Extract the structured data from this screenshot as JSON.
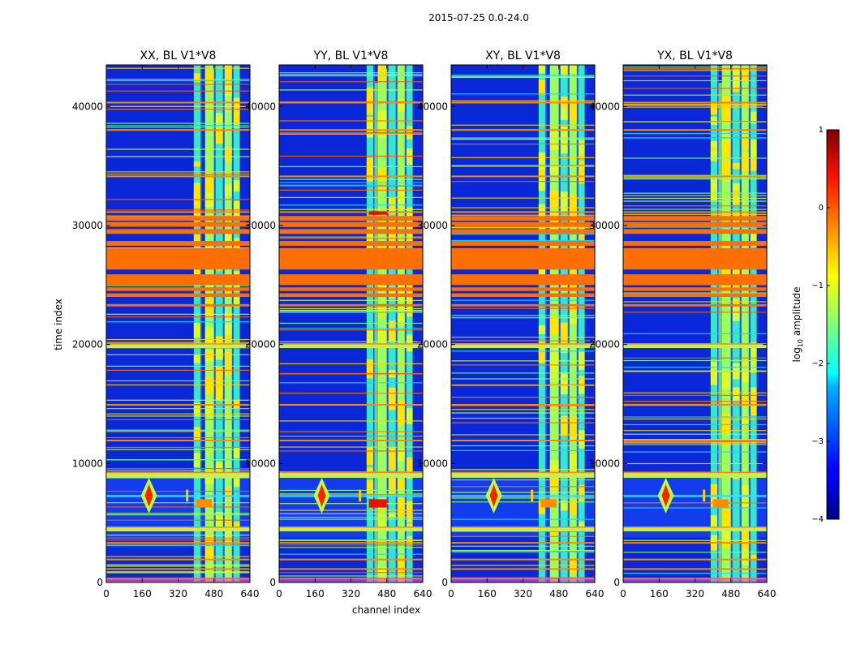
{
  "figure": {
    "suptitle": "2015-07-25 0.0-24.0",
    "xlabel": "channel index",
    "ylabel": "time index"
  },
  "chart_data": {
    "type": "heatmap",
    "title": "2015-07-25 0.0-24.0",
    "xlabel": "channel index",
    "ylabel": "time index",
    "xlim": [
      0,
      640
    ],
    "ylim": [
      0,
      43500
    ],
    "xticks": [
      0,
      160,
      320,
      480,
      640
    ],
    "yticks": [
      0,
      10000,
      20000,
      30000,
      40000
    ],
    "panels": [
      {
        "title": "XX, BL V1*V8",
        "variant": 0
      },
      {
        "title": "YY, BL V1*V8",
        "variant": 1
      },
      {
        "title": "XY, BL V1*V8",
        "variant": 2
      },
      {
        "title": "YX, BL V1*V8",
        "variant": 3
      }
    ],
    "colorbar": {
      "label_prefix": "log",
      "label_sub": "10",
      "label_suffix": " amplitude",
      "min": -4,
      "max": 1,
      "ticks": [
        1,
        0,
        -1,
        -2,
        -3,
        -4
      ],
      "tick_labels": [
        "1",
        "0",
        "−1",
        "−2",
        "−3",
        "−4"
      ],
      "colormap": "jet"
    },
    "bands": {
      "flagged_time_ranges": [
        [
          25000,
          25900
        ],
        [
          26300,
          28100
        ],
        [
          28300,
          28700
        ],
        [
          29300,
          29700
        ],
        [
          29900,
          30300
        ],
        [
          30400,
          30800
        ],
        [
          24000,
          24300
        ],
        [
          24500,
          24800
        ],
        [
          23200,
          23400
        ]
      ],
      "broad_time_ranges": [
        [
          8800,
          9300
        ],
        [
          4300,
          4700
        ],
        [
          19700,
          20100
        ]
      ],
      "bright_channel_columns": [
        [
          390,
          420
        ],
        [
          440,
          480
        ],
        [
          485,
          520
        ],
        [
          525,
          560
        ],
        [
          565,
          595
        ]
      ],
      "rfi_feature": {
        "channel": 190,
        "time": 7300
      }
    },
    "colors": {
      "background": "#0a28d8",
      "flag_orange": "#ff6f00",
      "cyan_yellow": "#bff25a"
    }
  }
}
